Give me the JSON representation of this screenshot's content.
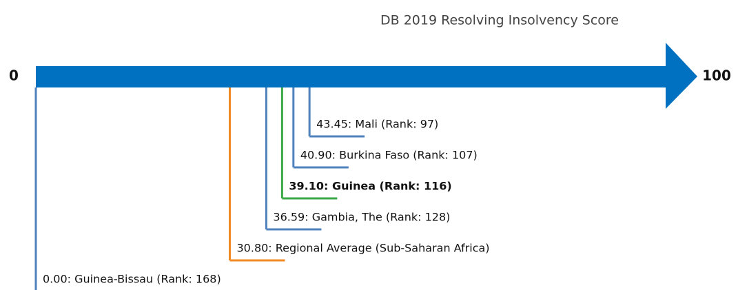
{
  "chart_data": {
    "type": "scale",
    "title": "DB 2019 Resolving Insolvency Score",
    "xlim": [
      0,
      100
    ],
    "xticks": [
      0,
      100
    ],
    "axis_color": "#0070c0",
    "labels": [
      "43.45: Mali (Rank: 97)",
      "40.90: Burkina Faso (Rank: 107)",
      "39.10: Guinea (Rank: 116)",
      "36.59: Gambia, The (Rank: 128)",
      "30.80: Regional Average (Sub-Saharan Africa)",
      "0.00: Guinea-Bissau (Rank: 168)"
    ],
    "values": [
      43.45,
      40.9,
      39.1,
      36.59,
      30.8,
      0
    ],
    "colors": [
      "#4f81bd",
      "#4f81bd",
      "#3aa845",
      "#4f81bd",
      "#f08a24",
      "#4f81bd"
    ],
    "bold": [
      false,
      false,
      true,
      false,
      false,
      false
    ]
  }
}
